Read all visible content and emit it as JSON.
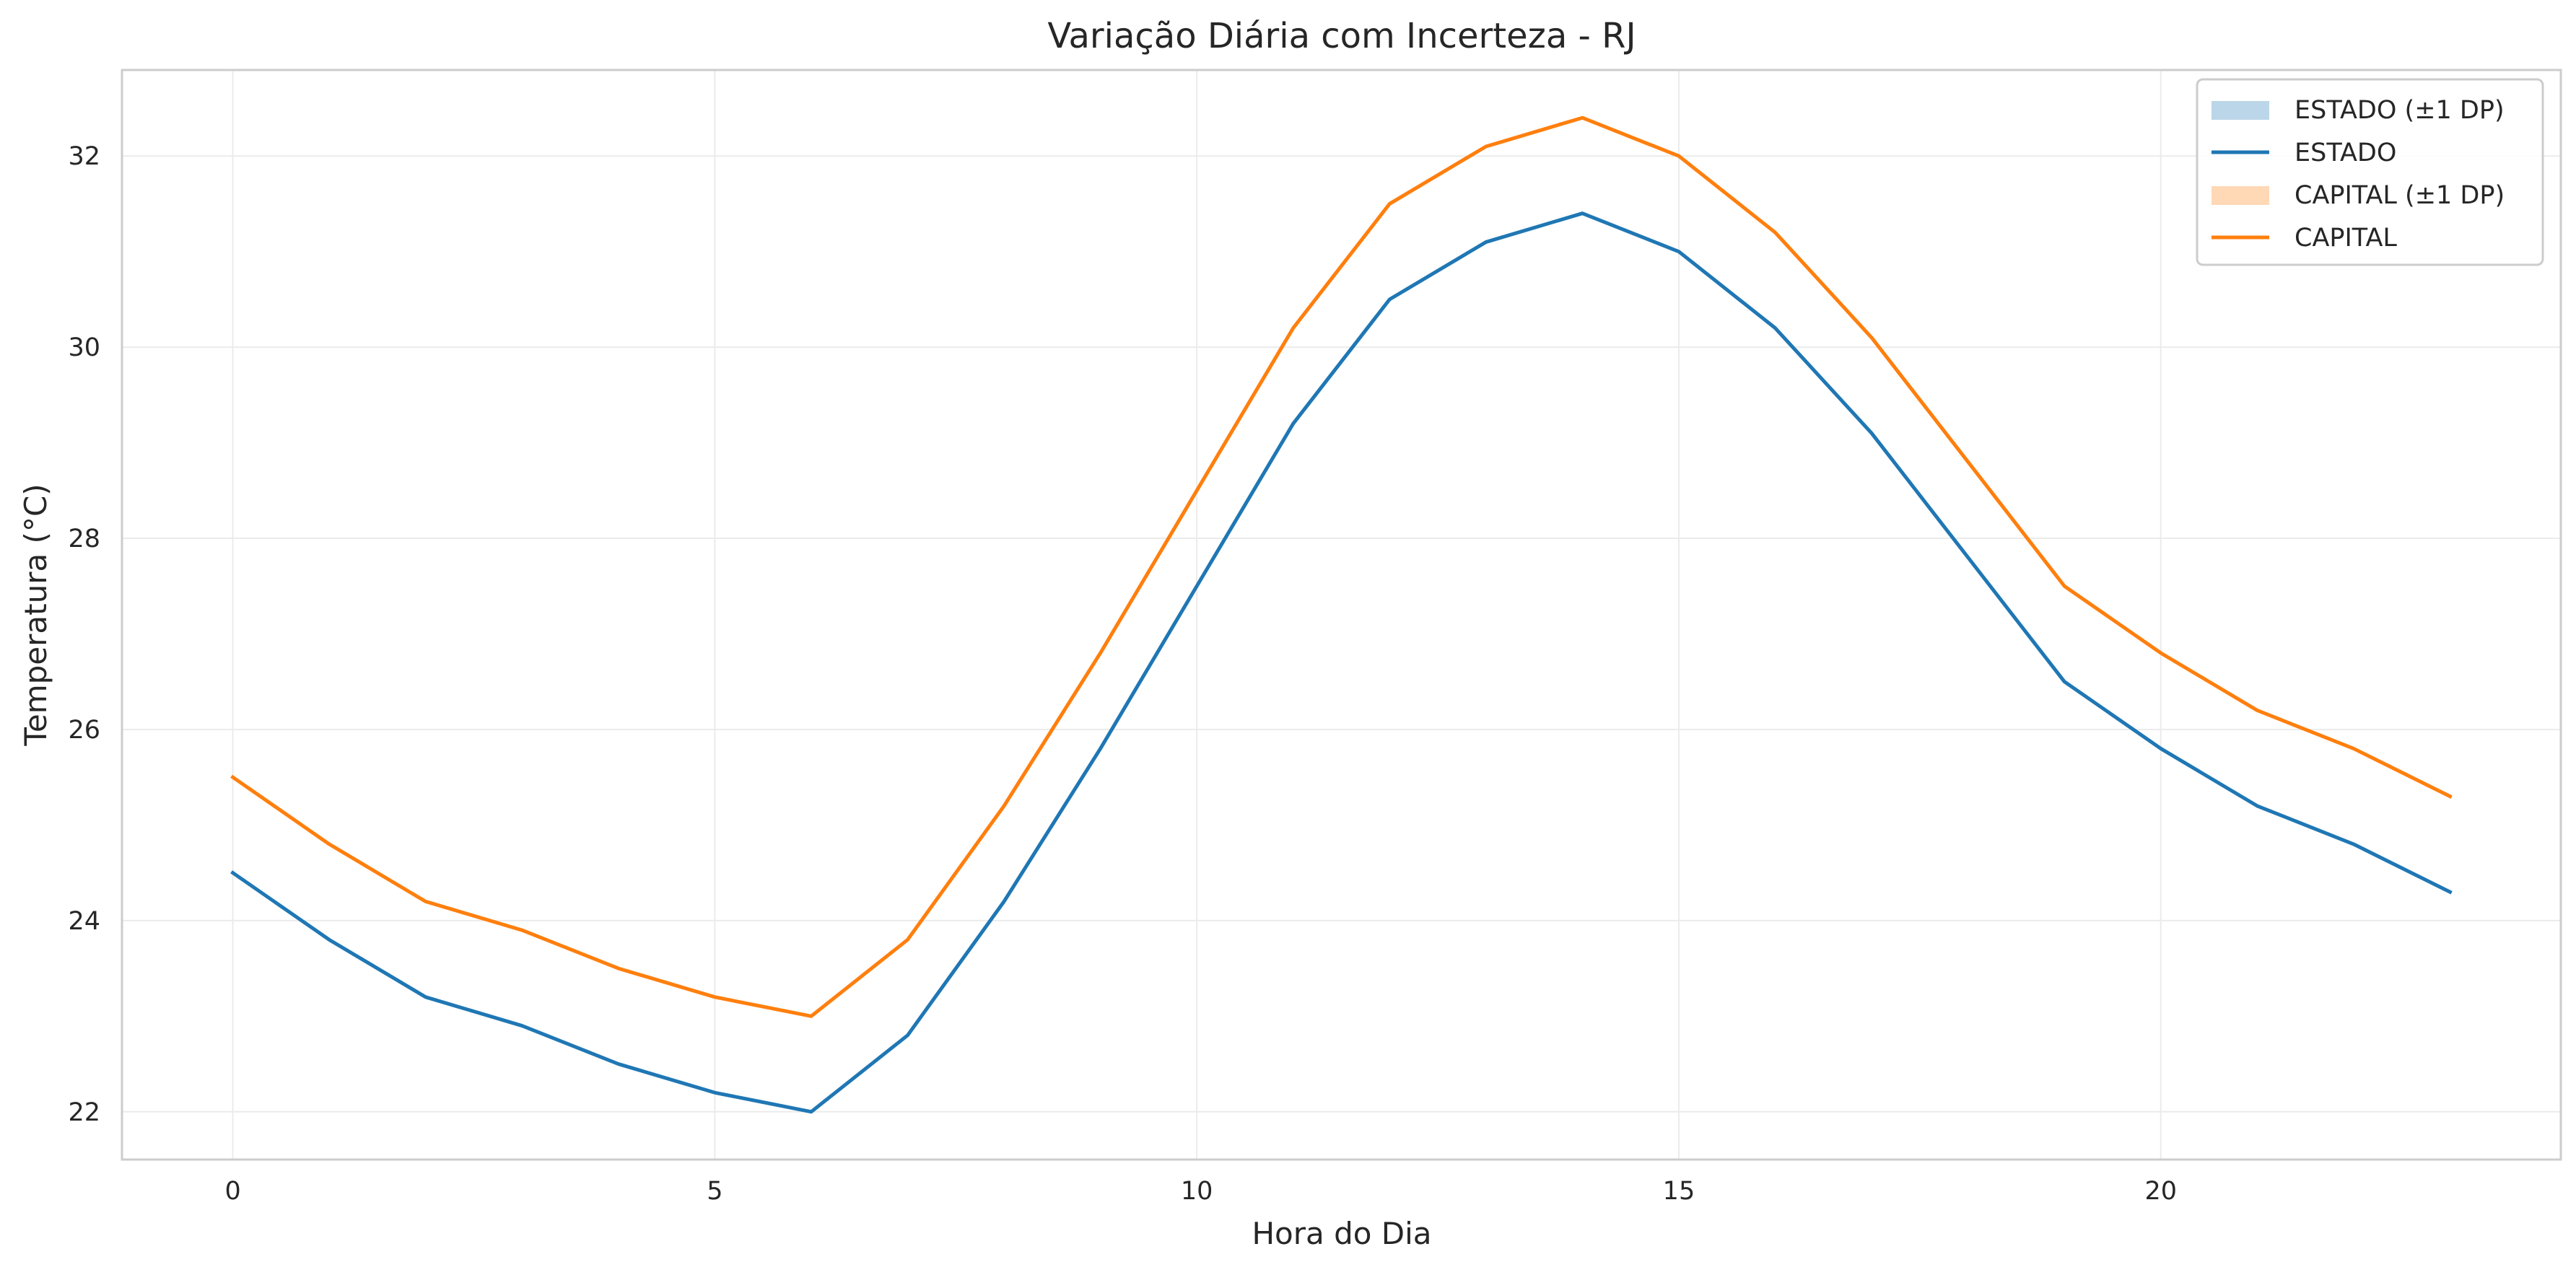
{
  "chart_data": {
    "type": "line",
    "title": "Variação Diária com Incerteza - RJ",
    "xlabel": "Hora do Dia",
    "ylabel": "Temperatura (°C)",
    "x": [
      0,
      1,
      2,
      3,
      4,
      5,
      6,
      7,
      8,
      9,
      10,
      11,
      12,
      13,
      14,
      15,
      16,
      17,
      18,
      19,
      20,
      21,
      22,
      23
    ],
    "xlim": [
      -1.15,
      24.15
    ],
    "ylim": [
      21.5,
      32.9
    ],
    "xticks": [
      0,
      5,
      10,
      15,
      20
    ],
    "yticks": [
      22,
      24,
      26,
      28,
      30,
      32
    ],
    "grid": true,
    "legend_position": "top-right",
    "legend": [
      {
        "label": "ESTADO (±1 DP)",
        "kind": "band",
        "color": "#1f77b4"
      },
      {
        "label": "ESTADO",
        "kind": "line",
        "color": "#1f77b4"
      },
      {
        "label": "CAPITAL (±1 DP)",
        "kind": "band",
        "color": "#ff7f0e"
      },
      {
        "label": "CAPITAL",
        "kind": "line",
        "color": "#ff7f0e"
      }
    ],
    "series": [
      {
        "name": "ESTADO",
        "color": "#1f77b4",
        "values": [
          24.5,
          23.8,
          23.2,
          22.9,
          22.5,
          22.2,
          22.0,
          22.8,
          24.2,
          25.8,
          27.5,
          29.2,
          30.5,
          31.1,
          31.4,
          31.0,
          30.2,
          29.1,
          27.8,
          26.5,
          25.8,
          25.2,
          24.8,
          24.3
        ],
        "band_sd": 0
      },
      {
        "name": "CAPITAL",
        "color": "#ff7f0e",
        "values": [
          25.5,
          24.8,
          24.2,
          23.9,
          23.5,
          23.2,
          23.0,
          23.8,
          25.2,
          26.8,
          28.5,
          30.2,
          31.5,
          32.1,
          32.4,
          32.0,
          31.2,
          30.1,
          28.8,
          27.5,
          26.8,
          26.2,
          25.8,
          25.3
        ],
        "band_sd": 0
      }
    ]
  },
  "style": {
    "background": "#ffffff",
    "plot_frame": "#cccccc",
    "grid_color": "#ebebeb",
    "text_color": "#262626",
    "band_opacity": 0.3
  }
}
